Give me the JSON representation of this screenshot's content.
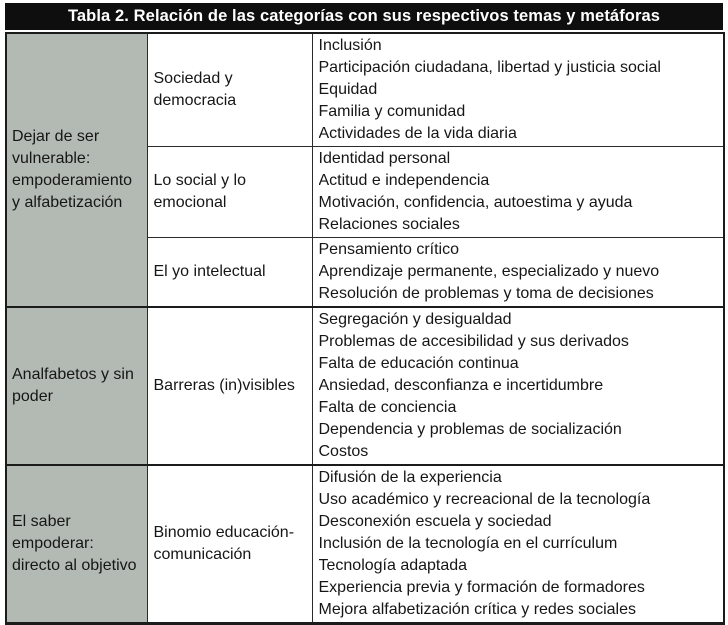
{
  "title": "Tabla 2. Relación de las categorías con sus respectivos temas y metáforas",
  "colors": {
    "title_bar_bg": "#0e0e0e",
    "title_bar_text": "#ffffff",
    "category_cell_bg": "#b3bab3",
    "cell_bg": "#ffffff",
    "border": "#1b1b1b",
    "body_text": "#161616"
  },
  "sections": [
    {
      "category": "Dejar de ser vulnerable: empoderamiento y alfabetización",
      "rows": [
        {
          "subcategory": "Sociedad y democracia",
          "themes": [
            "Inclusión",
            "Participación ciudadana, libertad y justicia social",
            "Equidad",
            "Familia y comunidad",
            "Actividades de la vida diaria"
          ]
        },
        {
          "subcategory": "Lo social y lo emocional",
          "themes": [
            "Identidad personal",
            "Actitud e independencia",
            "Motivación, confidencia, autoestima y ayuda",
            "Relaciones sociales"
          ]
        },
        {
          "subcategory": "El yo intelectual",
          "themes": [
            "Pensamiento crítico",
            "Aprendizaje permanente, especializado y nuevo",
            "Resolución de problemas y toma de decisiones"
          ]
        }
      ]
    },
    {
      "category": "Analfabetos y sin poder",
      "rows": [
        {
          "subcategory": "Barreras (in)visibles",
          "themes": [
            "Segregación y desigualdad",
            "Problemas de accesibilidad y sus derivados",
            "Falta de educación continua",
            "Ansiedad, desconfianza e incertidumbre",
            "Falta de conciencia",
            "Dependencia y problemas de socialización",
            "Costos"
          ]
        }
      ]
    },
    {
      "category": "El saber empoderar: directo al objetivo",
      "rows": [
        {
          "subcategory": "Binomio educación-comunicación",
          "themes": [
            "Difusión de la experiencia",
            "Uso académico y recreacional de la tecnología",
            "Desconexión escuela y sociedad",
            "Inclusión de la tecnología en el currículum",
            "Tecnología adaptada",
            "Experiencia previa y formación de formadores",
            "Mejora alfabetización crítica y redes sociales"
          ]
        }
      ]
    }
  ]
}
